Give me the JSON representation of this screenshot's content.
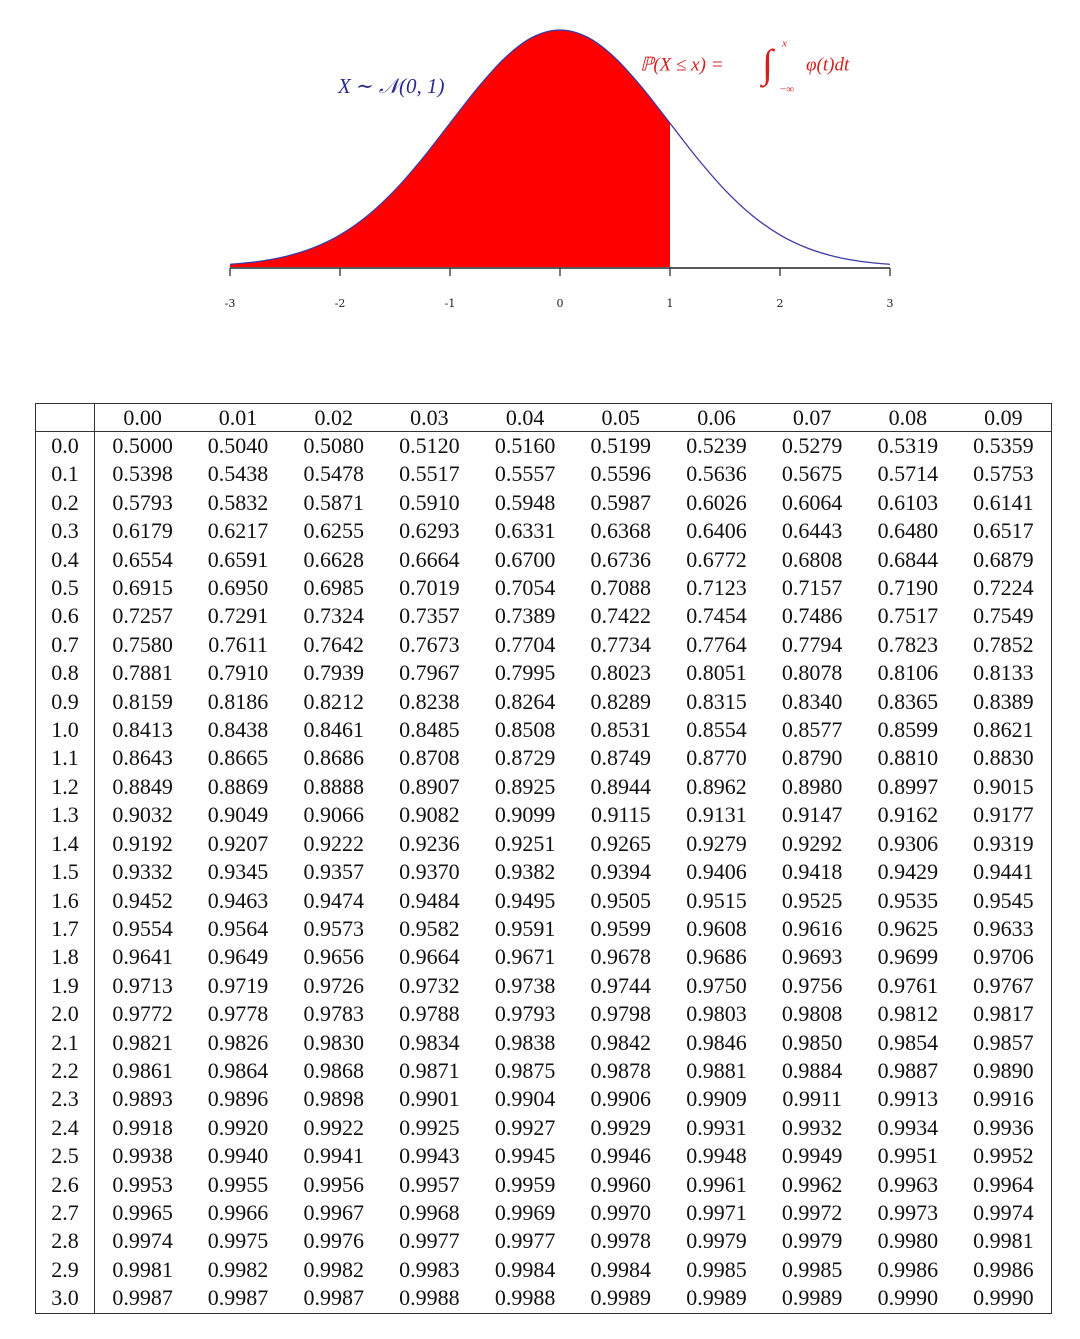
{
  "chart_data": {
    "type": "area",
    "x": [
      -3,
      -2.75,
      -2.5,
      -2.25,
      -2,
      -1.75,
      -1.5,
      -1.25,
      -1,
      -0.75,
      -0.5,
      -0.25,
      0,
      0.25,
      0.5,
      0.75,
      1,
      1.25,
      1.5,
      1.75,
      2,
      2.25,
      2.5,
      2.75,
      3
    ],
    "values": [
      0.0044,
      0.0091,
      0.0175,
      0.0317,
      0.054,
      0.0863,
      0.1295,
      0.1826,
      0.242,
      0.3011,
      0.3521,
      0.3867,
      0.3989,
      0.3867,
      0.3521,
      0.3011,
      0.242,
      0.1826,
      0.1295,
      0.0863,
      0.054,
      0.0317,
      0.0175,
      0.0091,
      0.0044
    ],
    "xlim": [
      -3,
      3
    ],
    "xticks": [
      -3,
      -2,
      -1,
      0,
      1,
      2,
      3
    ],
    "fill_to": 1,
    "fill_color": "#ff0000",
    "line_color": "#3b3ba6",
    "annotations": {
      "distribution": "X ∼ 𝒩(0, 1)",
      "probability": "ℙ(X ≤ x) =",
      "integral": "∫",
      "upper_limit": "x",
      "lower_limit": "−∞",
      "integrand": "φ(t)dt"
    }
  },
  "table": {
    "columns": [
      "0.00",
      "0.01",
      "0.02",
      "0.03",
      "0.04",
      "0.05",
      "0.06",
      "0.07",
      "0.08",
      "0.09"
    ],
    "rows": [
      {
        "label": "0.0",
        "cells": [
          "0.5000",
          "0.5040",
          "0.5080",
          "0.5120",
          "0.5160",
          "0.5199",
          "0.5239",
          "0.5279",
          "0.5319",
          "0.5359"
        ]
      },
      {
        "label": "0.1",
        "cells": [
          "0.5398",
          "0.5438",
          "0.5478",
          "0.5517",
          "0.5557",
          "0.5596",
          "0.5636",
          "0.5675",
          "0.5714",
          "0.5753"
        ]
      },
      {
        "label": "0.2",
        "cells": [
          "0.5793",
          "0.5832",
          "0.5871",
          "0.5910",
          "0.5948",
          "0.5987",
          "0.6026",
          "0.6064",
          "0.6103",
          "0.6141"
        ]
      },
      {
        "label": "0.3",
        "cells": [
          "0.6179",
          "0.6217",
          "0.6255",
          "0.6293",
          "0.6331",
          "0.6368",
          "0.6406",
          "0.6443",
          "0.6480",
          "0.6517"
        ]
      },
      {
        "label": "0.4",
        "cells": [
          "0.6554",
          "0.6591",
          "0.6628",
          "0.6664",
          "0.6700",
          "0.6736",
          "0.6772",
          "0.6808",
          "0.6844",
          "0.6879"
        ]
      },
      {
        "label": "0.5",
        "cells": [
          "0.6915",
          "0.6950",
          "0.6985",
          "0.7019",
          "0.7054",
          "0.7088",
          "0.7123",
          "0.7157",
          "0.7190",
          "0.7224"
        ]
      },
      {
        "label": "0.6",
        "cells": [
          "0.7257",
          "0.7291",
          "0.7324",
          "0.7357",
          "0.7389",
          "0.7422",
          "0.7454",
          "0.7486",
          "0.7517",
          "0.7549"
        ]
      },
      {
        "label": "0.7",
        "cells": [
          "0.7580",
          "0.7611",
          "0.7642",
          "0.7673",
          "0.7704",
          "0.7734",
          "0.7764",
          "0.7794",
          "0.7823",
          "0.7852"
        ]
      },
      {
        "label": "0.8",
        "cells": [
          "0.7881",
          "0.7910",
          "0.7939",
          "0.7967",
          "0.7995",
          "0.8023",
          "0.8051",
          "0.8078",
          "0.8106",
          "0.8133"
        ]
      },
      {
        "label": "0.9",
        "cells": [
          "0.8159",
          "0.8186",
          "0.8212",
          "0.8238",
          "0.8264",
          "0.8289",
          "0.8315",
          "0.8340",
          "0.8365",
          "0.8389"
        ]
      },
      {
        "label": "1.0",
        "cells": [
          "0.8413",
          "0.8438",
          "0.8461",
          "0.8485",
          "0.8508",
          "0.8531",
          "0.8554",
          "0.8577",
          "0.8599",
          "0.8621"
        ]
      },
      {
        "label": "1.1",
        "cells": [
          "0.8643",
          "0.8665",
          "0.8686",
          "0.8708",
          "0.8729",
          "0.8749",
          "0.8770",
          "0.8790",
          "0.8810",
          "0.8830"
        ]
      },
      {
        "label": "1.2",
        "cells": [
          "0.8849",
          "0.8869",
          "0.8888",
          "0.8907",
          "0.8925",
          "0.8944",
          "0.8962",
          "0.8980",
          "0.8997",
          "0.9015"
        ]
      },
      {
        "label": "1.3",
        "cells": [
          "0.9032",
          "0.9049",
          "0.9066",
          "0.9082",
          "0.9099",
          "0.9115",
          "0.9131",
          "0.9147",
          "0.9162",
          "0.9177"
        ]
      },
      {
        "label": "1.4",
        "cells": [
          "0.9192",
          "0.9207",
          "0.9222",
          "0.9236",
          "0.9251",
          "0.9265",
          "0.9279",
          "0.9292",
          "0.9306",
          "0.9319"
        ]
      },
      {
        "label": "1.5",
        "cells": [
          "0.9332",
          "0.9345",
          "0.9357",
          "0.9370",
          "0.9382",
          "0.9394",
          "0.9406",
          "0.9418",
          "0.9429",
          "0.9441"
        ]
      },
      {
        "label": "1.6",
        "cells": [
          "0.9452",
          "0.9463",
          "0.9474",
          "0.9484",
          "0.9495",
          "0.9505",
          "0.9515",
          "0.9525",
          "0.9535",
          "0.9545"
        ]
      },
      {
        "label": "1.7",
        "cells": [
          "0.9554",
          "0.9564",
          "0.9573",
          "0.9582",
          "0.9591",
          "0.9599",
          "0.9608",
          "0.9616",
          "0.9625",
          "0.9633"
        ]
      },
      {
        "label": "1.8",
        "cells": [
          "0.9641",
          "0.9649",
          "0.9656",
          "0.9664",
          "0.9671",
          "0.9678",
          "0.9686",
          "0.9693",
          "0.9699",
          "0.9706"
        ]
      },
      {
        "label": "1.9",
        "cells": [
          "0.9713",
          "0.9719",
          "0.9726",
          "0.9732",
          "0.9738",
          "0.9744",
          "0.9750",
          "0.9756",
          "0.9761",
          "0.9767"
        ]
      },
      {
        "label": "2.0",
        "cells": [
          "0.9772",
          "0.9778",
          "0.9783",
          "0.9788",
          "0.9793",
          "0.9798",
          "0.9803",
          "0.9808",
          "0.9812",
          "0.9817"
        ]
      },
      {
        "label": "2.1",
        "cells": [
          "0.9821",
          "0.9826",
          "0.9830",
          "0.9834",
          "0.9838",
          "0.9842",
          "0.9846",
          "0.9850",
          "0.9854",
          "0.9857"
        ]
      },
      {
        "label": "2.2",
        "cells": [
          "0.9861",
          "0.9864",
          "0.9868",
          "0.9871",
          "0.9875",
          "0.9878",
          "0.9881",
          "0.9884",
          "0.9887",
          "0.9890"
        ]
      },
      {
        "label": "2.3",
        "cells": [
          "0.9893",
          "0.9896",
          "0.9898",
          "0.9901",
          "0.9904",
          "0.9906",
          "0.9909",
          "0.9911",
          "0.9913",
          "0.9916"
        ]
      },
      {
        "label": "2.4",
        "cells": [
          "0.9918",
          "0.9920",
          "0.9922",
          "0.9925",
          "0.9927",
          "0.9929",
          "0.9931",
          "0.9932",
          "0.9934",
          "0.9936"
        ]
      },
      {
        "label": "2.5",
        "cells": [
          "0.9938",
          "0.9940",
          "0.9941",
          "0.9943",
          "0.9945",
          "0.9946",
          "0.9948",
          "0.9949",
          "0.9951",
          "0.9952"
        ]
      },
      {
        "label": "2.6",
        "cells": [
          "0.9953",
          "0.9955",
          "0.9956",
          "0.9957",
          "0.9959",
          "0.9960",
          "0.9961",
          "0.9962",
          "0.9963",
          "0.9964"
        ]
      },
      {
        "label": "2.7",
        "cells": [
          "0.9965",
          "0.9966",
          "0.9967",
          "0.9968",
          "0.9969",
          "0.9970",
          "0.9971",
          "0.9972",
          "0.9973",
          "0.9974"
        ]
      },
      {
        "label": "2.8",
        "cells": [
          "0.9974",
          "0.9975",
          "0.9976",
          "0.9977",
          "0.9977",
          "0.9978",
          "0.9979",
          "0.9979",
          "0.9980",
          "0.9981"
        ]
      },
      {
        "label": "2.9",
        "cells": [
          "0.9981",
          "0.9982",
          "0.9982",
          "0.9983",
          "0.9984",
          "0.9984",
          "0.9985",
          "0.9985",
          "0.9986",
          "0.9986"
        ]
      },
      {
        "label": "3.0",
        "cells": [
          "0.9987",
          "0.9987",
          "0.9987",
          "0.9988",
          "0.9988",
          "0.9989",
          "0.9989",
          "0.9989",
          "0.9990",
          "0.9990"
        ]
      }
    ]
  }
}
